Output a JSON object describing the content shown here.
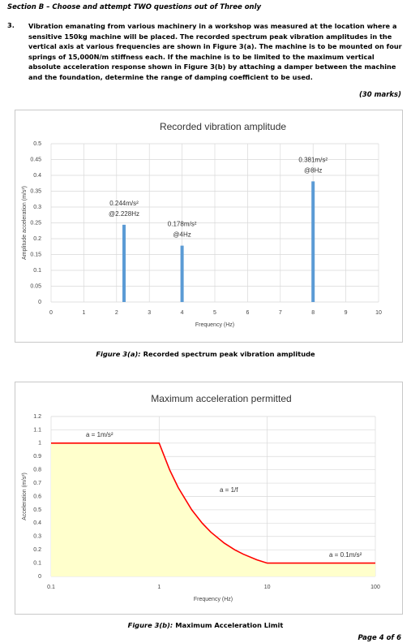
{
  "header": {
    "title": "Section B – Choose and attempt TWO questions out of Three only"
  },
  "question": {
    "number": "3.",
    "text": "Vibration emanating from various machinery in a workshop was measured at the location where a sensitive 150kg machine will be placed. The recorded spectrum peak vibration amplitudes in the vertical axis at various frequencies are shown in Figure 3(a). The machine is to be mounted on four springs of 15,000N/m stiffness each. If the machine is to be limited to the maximum vertical absolute acceleration response shown in Figure 3(b) by attaching a damper between the machine and the foundation, determine the range of damping coefficient to be used.",
    "marks": "(30 marks)"
  },
  "chart_data": [
    {
      "type": "bar",
      "title": "Recorded vibration amplitude",
      "x_label": "Frequency (Hz)",
      "y_label": "Amplitude acceleration (m/s²)",
      "x": [
        2.228,
        4,
        8
      ],
      "values": [
        0.244,
        0.178,
        0.381
      ],
      "value_labels": [
        "0.244m/s²",
        "0.178m/s²",
        "0.381m/s²"
      ],
      "x_value_labels": [
        "@2.228Hz",
        "@4Hz",
        "@8Hz"
      ],
      "color": "#5b9bd5",
      "xlim": [
        0,
        10
      ],
      "xticks": [
        0,
        1,
        2,
        3,
        4,
        5,
        6,
        7,
        8,
        9,
        10
      ],
      "ylim": [
        0,
        0.5
      ],
      "yticks": [
        0,
        0.05,
        0.1,
        0.15,
        0.2,
        0.25,
        0.3,
        0.35,
        0.4,
        0.45,
        0.5
      ],
      "grid": true
    },
    {
      "type": "area",
      "title": "Maximum acceleration permitted",
      "x_label": "Frequency (Hz)",
      "y_label": "Acceleration (m/s²)",
      "xscale": "log",
      "x": [
        0.1,
        1,
        1.25,
        1.5,
        2,
        2.5,
        3,
        4,
        5,
        6,
        8,
        10,
        100
      ],
      "values": [
        1,
        1,
        0.8,
        0.667,
        0.5,
        0.4,
        0.333,
        0.25,
        0.2,
        0.167,
        0.125,
        0.1,
        0.1
      ],
      "color": "#ff0000",
      "fill": "#ffffcc",
      "annotations": [
        "a = 1m/s²",
        "a = 1/f",
        "a = 0.1m/s²"
      ],
      "xlim": [
        0.1,
        100
      ],
      "xticks": [
        0.1,
        1,
        10,
        100
      ],
      "ylim": [
        0,
        1.2
      ],
      "yticks": [
        0,
        0.1,
        0.2,
        0.3,
        0.4,
        0.5,
        0.6,
        0.7,
        0.8,
        0.9,
        1,
        1.1,
        1.2
      ],
      "grid": true
    }
  ],
  "captions": [
    {
      "label": "Figure 3(a):",
      "text": "Recorded spectrum peak vibration amplitude"
    },
    {
      "label": "Figure 3(b):",
      "text": "Maximum Acceleration Limit"
    }
  ],
  "footer": {
    "page": "Page 4 of 6"
  }
}
